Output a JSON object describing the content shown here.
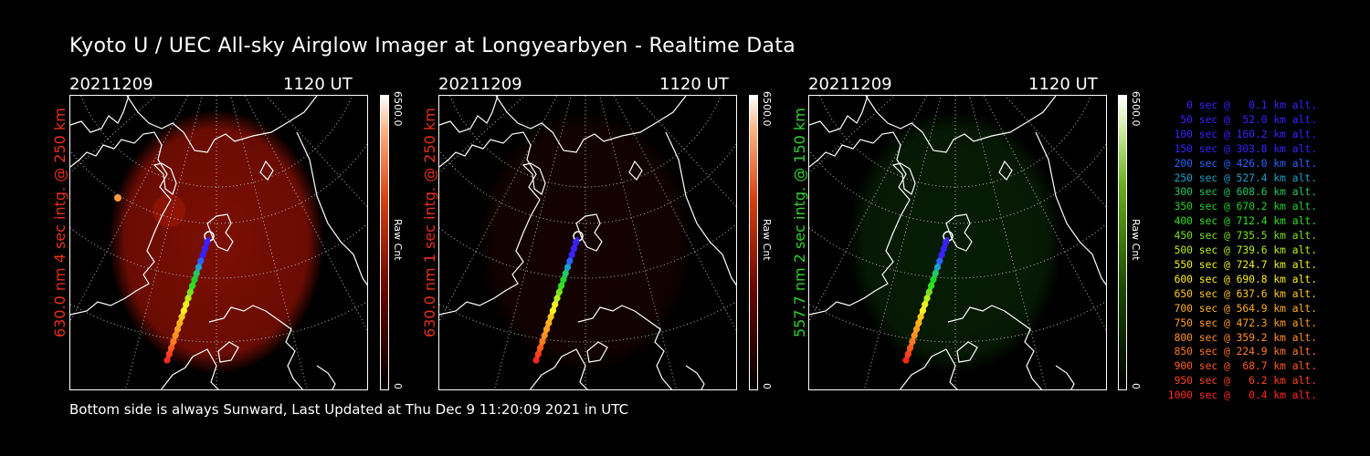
{
  "title": "Kyoto U / UEC All-sky Airglow Imager at Longyearbyen - Realtime Data",
  "footer": "Bottom side is always Sunward, Last Updated at Thu Dec  9 11:20:09 2021 in UTC",
  "panels": [
    {
      "date": "20211209",
      "time": "1120 UT",
      "label": "630.0 nm 4 sec intg. @ 250 km",
      "label_color": "#e8301c",
      "scale_max": "6500.0",
      "scale_min": "0",
      "scale_unit": "Raw Cnt",
      "glow_color": "#8a1004",
      "glow_level": 0.9,
      "colorbar": "red"
    },
    {
      "date": "20211209",
      "time": "1120 UT",
      "label": "630.0 nm 1 sec intg. @ 250 km",
      "label_color": "#e8301c",
      "scale_max": "6500.0",
      "scale_min": "0",
      "scale_unit": "Raw Cnt",
      "glow_color": "#3a0602",
      "glow_level": 0.35,
      "colorbar": "red"
    },
    {
      "date": "20211209",
      "time": "1120 UT",
      "label": "557.7 nm 2 sec intg. @ 150 km",
      "label_color": "#2fd12f",
      "scale_max": "6500.0",
      "scale_min": "0",
      "scale_unit": "Raw Cnt",
      "glow_color": "#0d3a08",
      "glow_level": 0.5,
      "colorbar": "green"
    }
  ],
  "legend": [
    {
      "text": "0 sec @   0.1 km alt.",
      "color": "#3a22ff"
    },
    {
      "text": "50 sec @  52.0 km alt.",
      "color": "#3a22ff"
    },
    {
      "text": "100 sec @ 160.2 km alt.",
      "color": "#3a22ff"
    },
    {
      "text": "150 sec @ 303.8 km alt.",
      "color": "#3a22ff"
    },
    {
      "text": "200 sec @ 426.0 km alt.",
      "color": "#2a64ff"
    },
    {
      "text": "250 sec @ 527.4 km alt.",
      "color": "#1fa0c8"
    },
    {
      "text": "300 sec @ 608.6 km alt.",
      "color": "#22c860"
    },
    {
      "text": "350 sec @ 670.2 km alt.",
      "color": "#22d22a"
    },
    {
      "text": "400 sec @ 712.4 km alt.",
      "color": "#30e020"
    },
    {
      "text": "450 sec @ 735.5 km alt.",
      "color": "#7ae020"
    },
    {
      "text": "500 sec @ 739.6 km alt.",
      "color": "#b8f020"
    },
    {
      "text": "550 sec @ 724.7 km alt.",
      "color": "#f0f020"
    },
    {
      "text": "600 sec @ 690.8 km alt.",
      "color": "#fff020"
    },
    {
      "text": "650 sec @ 637.6 km alt.",
      "color": "#ffc820"
    },
    {
      "text": "700 sec @ 564.9 km alt.",
      "color": "#ffb020"
    },
    {
      "text": "750 sec @ 472.3 km alt.",
      "color": "#ffa020"
    },
    {
      "text": "800 sec @ 359.2 km alt.",
      "color": "#ff9020"
    },
    {
      "text": "850 sec @ 224.9 km alt.",
      "color": "#ff7a20"
    },
    {
      "text": "900 sec @  68.7 km alt.",
      "color": "#ff5a20"
    },
    {
      "text": "950 sec @   6.2 km alt.",
      "color": "#ff4020"
    },
    {
      "text": "1000 sec @   0.4 km alt.",
      "color": "#ff2a20"
    }
  ]
}
